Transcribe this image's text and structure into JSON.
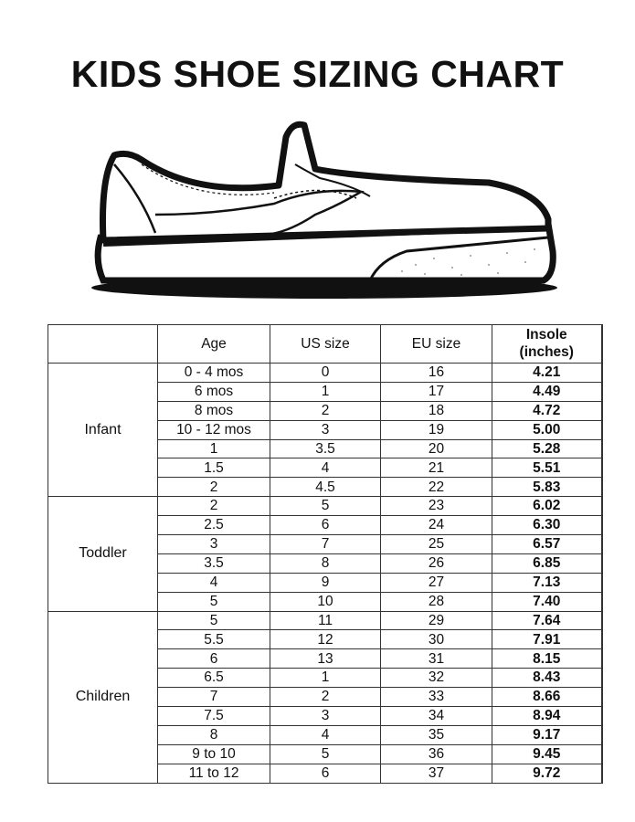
{
  "title": "KIDS SHOE SIZING CHART",
  "table": {
    "headers": [
      "",
      "Age",
      "US size",
      "EU size",
      "Insole (inches)"
    ],
    "groups": [
      {
        "label": "Infant",
        "rows": [
          [
            "0 - 4 mos",
            "0",
            "16",
            "4.21"
          ],
          [
            "6 mos",
            "1",
            "17",
            "4.49"
          ],
          [
            "8 mos",
            "2",
            "18",
            "4.72"
          ],
          [
            "10 - 12 mos",
            "3",
            "19",
            "5.00"
          ],
          [
            "1",
            "3.5",
            "20",
            "5.28"
          ],
          [
            "1.5",
            "4",
            "21",
            "5.51"
          ],
          [
            "2",
            "4.5",
            "22",
            "5.83"
          ]
        ]
      },
      {
        "label": "Toddler",
        "rows": [
          [
            "2",
            "5",
            "23",
            "6.02"
          ],
          [
            "2.5",
            "6",
            "24",
            "6.30"
          ],
          [
            "3",
            "7",
            "25",
            "6.57"
          ],
          [
            "3.5",
            "8",
            "26",
            "6.85"
          ],
          [
            "4",
            "9",
            "27",
            "7.13"
          ],
          [
            "5",
            "10",
            "28",
            "7.40"
          ]
        ]
      },
      {
        "label": "Children",
        "rows": [
          [
            "5",
            "11",
            "29",
            "7.64"
          ],
          [
            "5.5",
            "12",
            "30",
            "7.91"
          ],
          [
            "6",
            "13",
            "31",
            "8.15"
          ],
          [
            "6.5",
            "1",
            "32",
            "8.43"
          ],
          [
            "7",
            "2",
            "33",
            "8.66"
          ],
          [
            "7.5",
            "3",
            "34",
            "8.94"
          ],
          [
            "8",
            "4",
            "35",
            "9.17"
          ],
          [
            "9 to 10",
            "5",
            "36",
            "9.45"
          ],
          [
            "11 to 12",
            "6",
            "37",
            "9.72"
          ]
        ]
      }
    ]
  }
}
